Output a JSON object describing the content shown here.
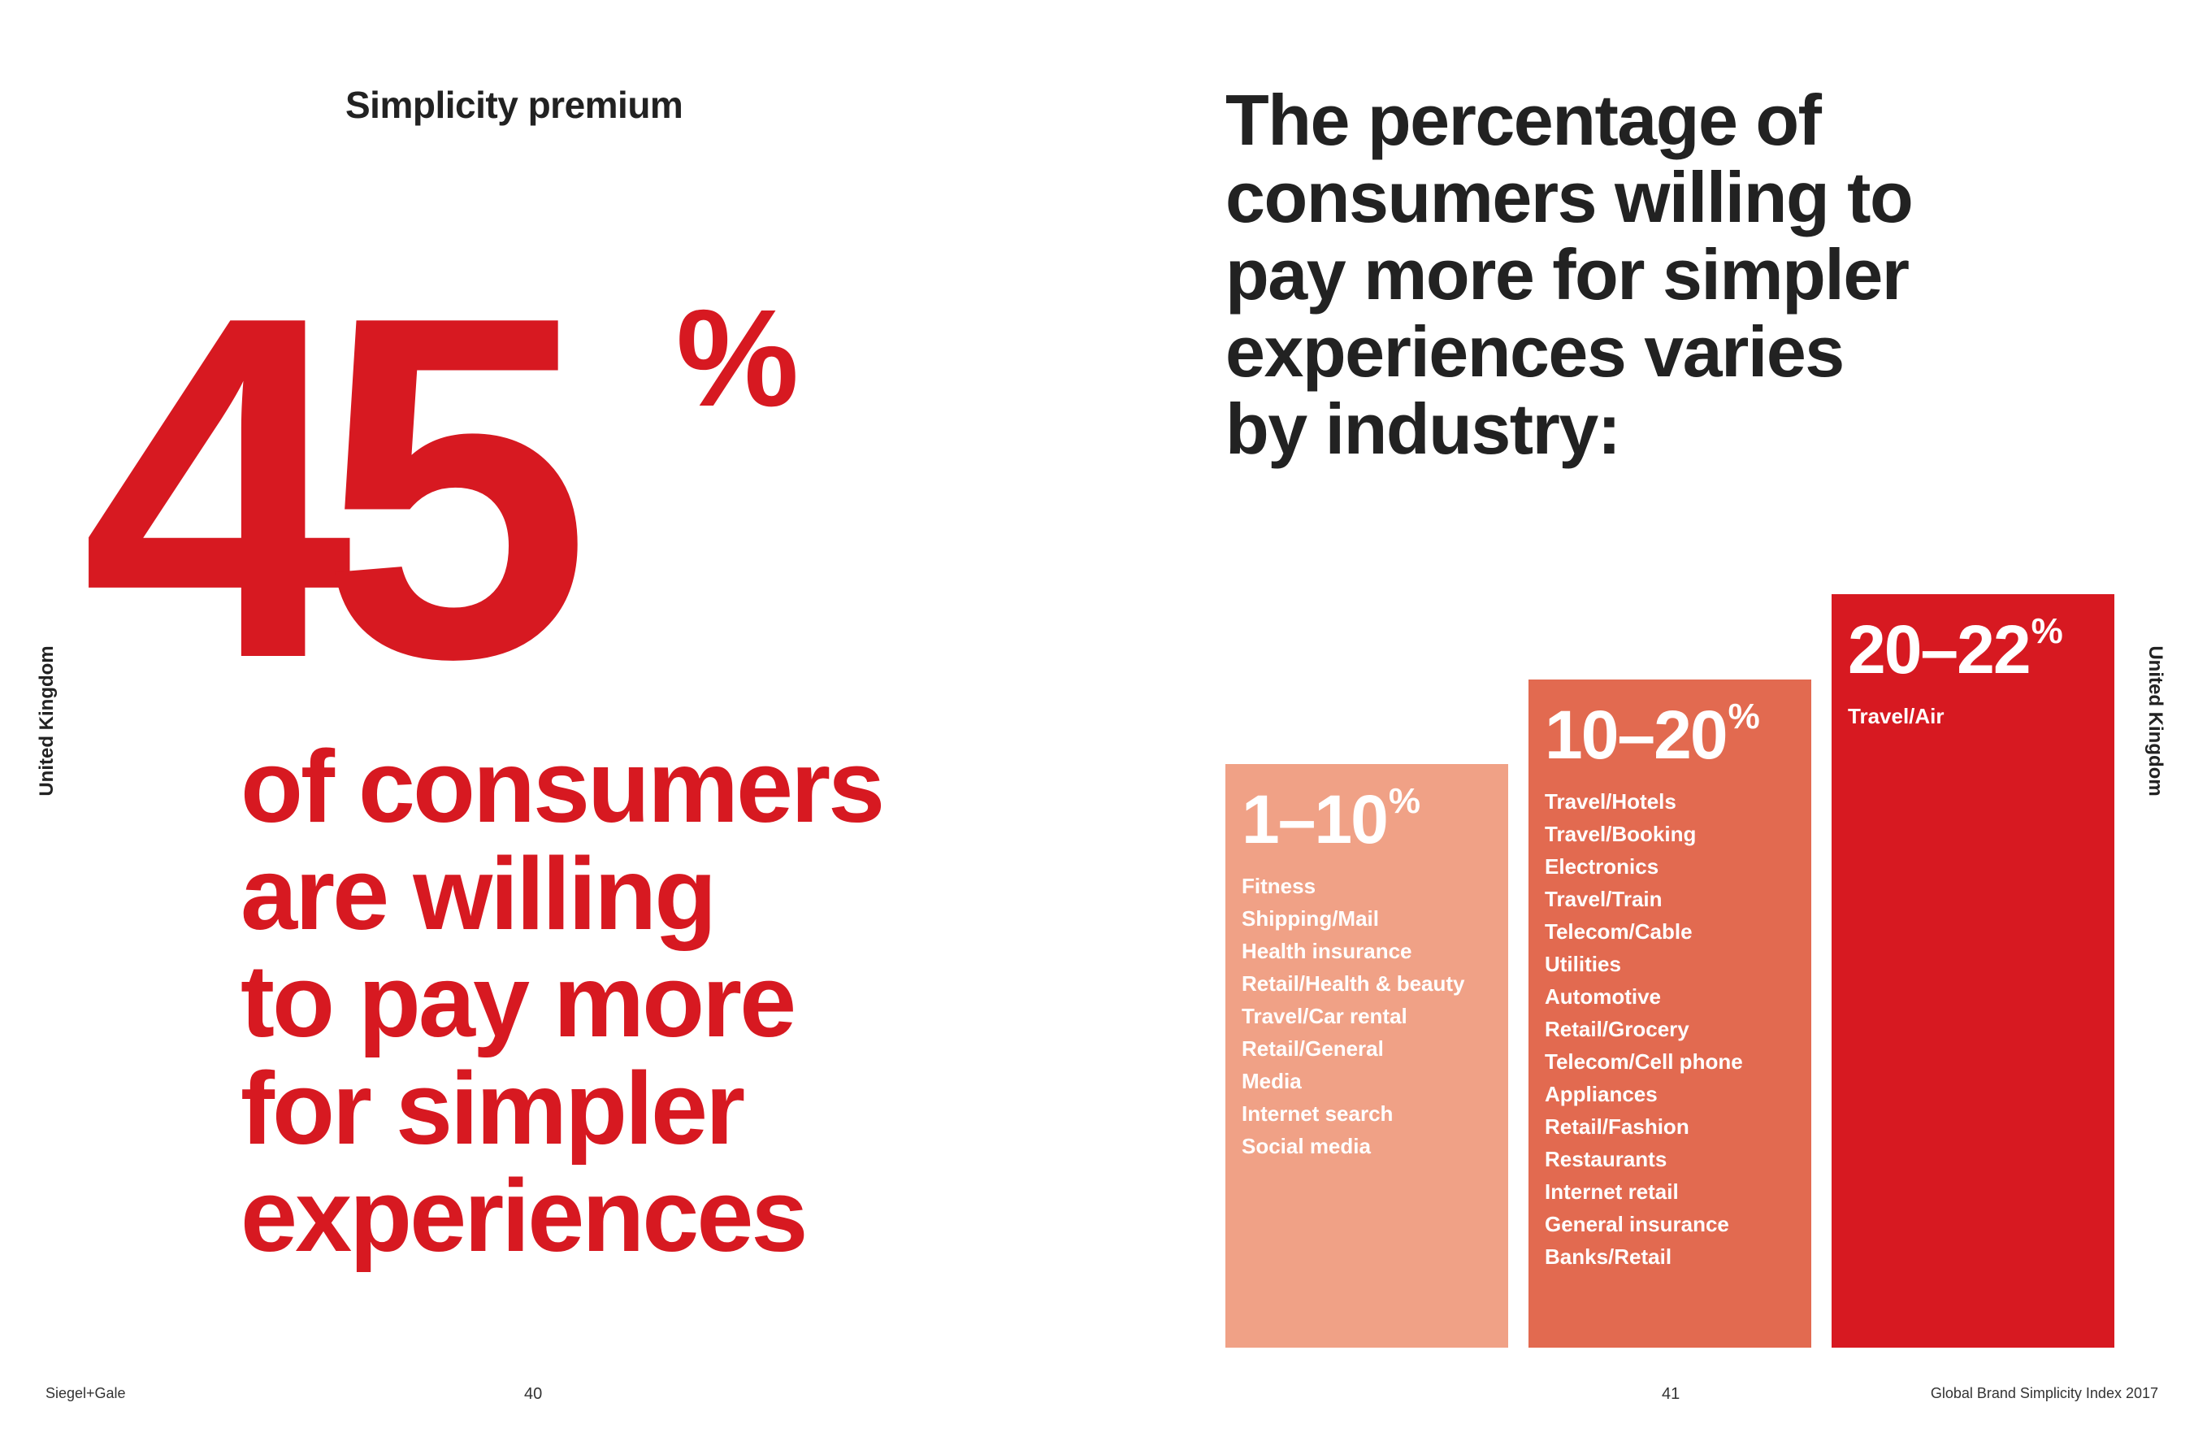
{
  "left_page": {
    "section_title": "Simplicity premium",
    "big_number": "45",
    "big_unit": "%",
    "statement_lines": [
      "of consumers",
      "are willing",
      "to pay more",
      "for simpler",
      "experiences"
    ],
    "side_label": "United Kingdom"
  },
  "right_page": {
    "headline_lines": [
      "The percentage of",
      "consumers willing to",
      "pay more for simpler",
      "experiences varies",
      "by industry:"
    ],
    "side_label": "United Kingdom",
    "bars": [
      {
        "range": "1–10",
        "unit": "%",
        "color": "#f0a186",
        "industries": [
          "Fitness",
          "Shipping/Mail",
          "Health insurance",
          "Retail/Health & beauty",
          "Travel/Car rental",
          "Retail/General",
          "Media",
          "Internet search",
          "Social media"
        ]
      },
      {
        "range": "10–20",
        "unit": "%",
        "color": "#e26a50",
        "industries": [
          "Travel/Hotels",
          "Travel/Booking",
          "Electronics",
          "Travel/Train",
          "Telecom/Cable",
          "Utilities",
          "Automotive",
          "Retail/Grocery",
          "Telecom/Cell phone",
          "Appliances",
          "Retail/Fashion",
          "Restaurants",
          "Internet retail",
          "General insurance",
          "Banks/Retail"
        ]
      },
      {
        "range": "20–22",
        "unit": "%",
        "color": "#d71921",
        "industries": [
          "Travel/Air"
        ]
      }
    ]
  },
  "footer": {
    "brand": "Siegel+Gale",
    "page_left": "40",
    "page_right": "41",
    "publication": "Global Brand Simplicity Index 2017"
  },
  "colors": {
    "accent_red": "#d71921",
    "text_dark": "#222222"
  }
}
